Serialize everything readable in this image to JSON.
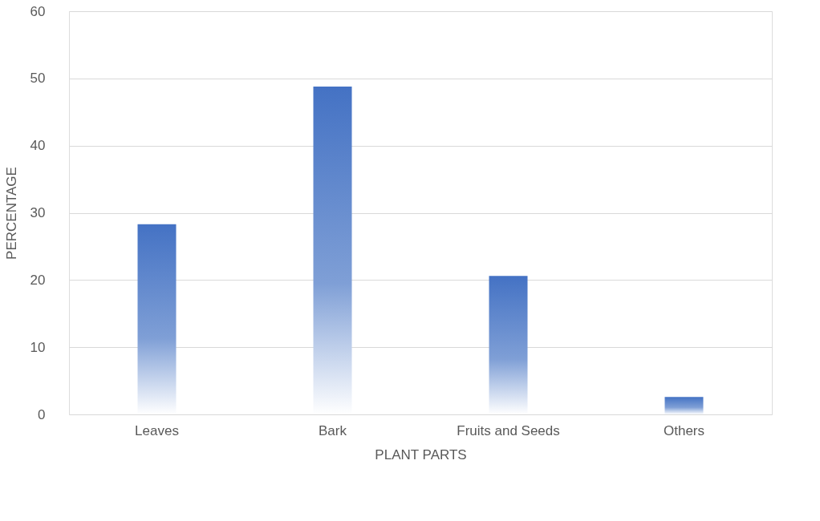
{
  "chart_data": {
    "type": "bar",
    "xlabel": "PLANT PARTS",
    "ylabel": "PERCENTAGE",
    "categories": [
      "Leaves",
      "Bark",
      "Fruits and Seeds",
      "Others"
    ],
    "values": [
      28.3,
      48.8,
      20.6,
      2.6
    ],
    "color": "#4472c4",
    "ylim": [
      0,
      60
    ],
    "yticks": [
      0,
      10,
      20,
      30,
      40,
      50,
      60
    ],
    "grid": "y"
  }
}
